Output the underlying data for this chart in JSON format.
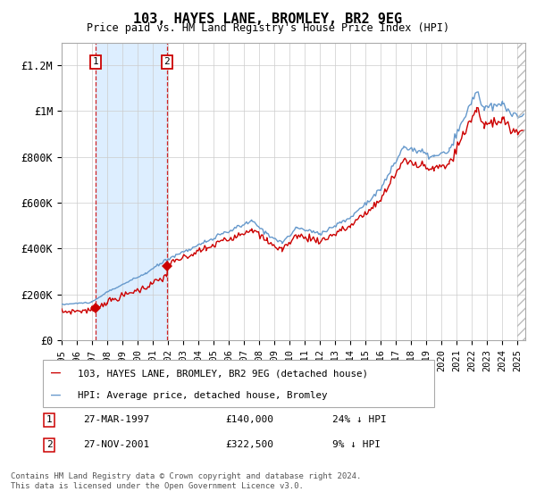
{
  "title": "103, HAYES LANE, BROMLEY, BR2 9EG",
  "subtitle": "Price paid vs. HM Land Registry's House Price Index (HPI)",
  "legend_line1": "103, HAYES LANE, BROMLEY, BR2 9EG (detached house)",
  "legend_line2": "HPI: Average price, detached house, Bromley",
  "transaction1_date": "27-MAR-1997",
  "transaction1_price": "£140,000",
  "transaction1_hpi": "24% ↓ HPI",
  "transaction1_date_num": 1997.23,
  "transaction1_value": 140000,
  "transaction2_date": "27-NOV-2001",
  "transaction2_price": "£322,500",
  "transaction2_hpi": "9% ↓ HPI",
  "transaction2_date_num": 2001.92,
  "transaction2_value": 322500,
  "ylim": [
    0,
    1300000
  ],
  "xlim_start": 1995.0,
  "xlim_end": 2025.5,
  "red_line_color": "#cc0000",
  "blue_line_color": "#6699cc",
  "shade_color": "#ddeeff",
  "grid_color": "#cccccc",
  "background_color": "#ffffff",
  "footer_text": "Contains HM Land Registry data © Crown copyright and database right 2024.\nThis data is licensed under the Open Government Licence v3.0.",
  "ytick_labels": [
    "£0",
    "£200K",
    "£400K",
    "£600K",
    "£800K",
    "£1M",
    "£1.2M"
  ],
  "ytick_values": [
    0,
    200000,
    400000,
    600000,
    800000,
    1000000,
    1200000
  ]
}
